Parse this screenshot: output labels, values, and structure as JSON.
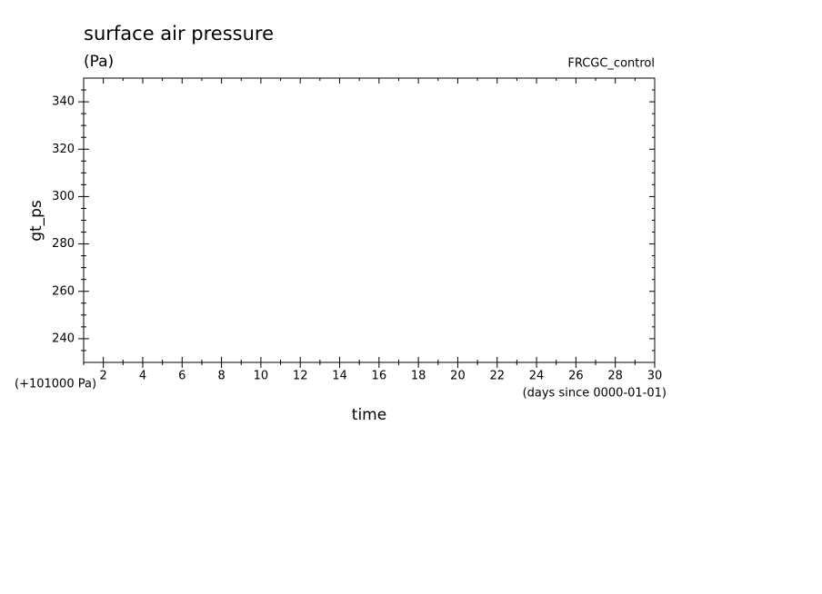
{
  "chart_data": {
    "type": "line",
    "title": "surface air pressure",
    "subtitle": "(Pa)",
    "annotation": "FRCGC_control",
    "x_label": "time",
    "x_unit_label": "(days since 0000-01-01)",
    "y_label": "gt_ps",
    "y_offset_label": "(+101000 Pa)",
    "series": [],
    "xlim": [
      1,
      30
    ],
    "xticks": [
      2,
      4,
      6,
      8,
      10,
      12,
      14,
      16,
      18,
      20,
      22,
      24,
      26,
      28,
      30
    ],
    "xminorticks": [
      1,
      3,
      5,
      7,
      9,
      11,
      13,
      15,
      17,
      19,
      21,
      23,
      25,
      27,
      29
    ],
    "ylim": [
      230,
      350
    ],
    "yticks": [
      240,
      260,
      280,
      300,
      320,
      340
    ],
    "yminorticks": [
      235,
      245,
      250,
      255,
      265,
      270,
      275,
      285,
      290,
      295,
      305,
      310,
      315,
      325,
      330,
      335,
      345
    ],
    "grid": false
  }
}
